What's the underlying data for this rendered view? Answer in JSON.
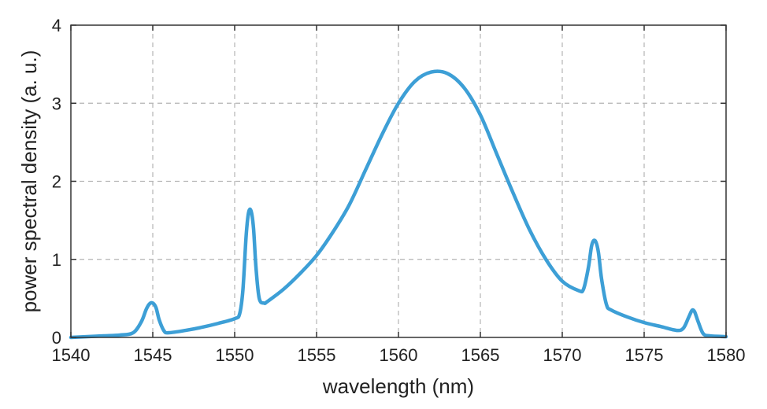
{
  "chart_data": {
    "type": "line",
    "xlabel": "wavelength (nm)",
    "ylabel": "power spectral density (a. u.)",
    "xlim": [
      1540,
      1580
    ],
    "ylim": [
      0,
      4
    ],
    "xticks": [
      1540,
      1545,
      1550,
      1555,
      1560,
      1565,
      1570,
      1575,
      1580
    ],
    "yticks": [
      0,
      1,
      2,
      3,
      4
    ],
    "grid": true,
    "line_color": "#3d9fd6",
    "series": [
      {
        "x": [
          1540,
          1541,
          1542,
          1543,
          1543.8,
          1544.3,
          1544.6,
          1544.8,
          1545,
          1545.2,
          1545.4,
          1545.7,
          1546,
          1547,
          1548,
          1549,
          1550,
          1550.3,
          1550.5,
          1550.7,
          1550.85,
          1551,
          1551.15,
          1551.3,
          1551.5,
          1551.8,
          1552,
          1553,
          1554,
          1555,
          1556,
          1557,
          1558,
          1559,
          1560,
          1561,
          1562,
          1563,
          1564,
          1565,
          1566,
          1567,
          1568,
          1569,
          1570,
          1571,
          1571.3,
          1571.6,
          1571.8,
          1572,
          1572.2,
          1572.4,
          1572.7,
          1573,
          1574,
          1575,
          1576,
          1577,
          1577.4,
          1577.7,
          1577.9,
          1578,
          1578.1,
          1578.3,
          1578.6,
          1579,
          1580
        ],
        "y": [
          0.0,
          0.01,
          0.02,
          0.03,
          0.06,
          0.2,
          0.36,
          0.43,
          0.44,
          0.38,
          0.22,
          0.08,
          0.06,
          0.09,
          0.13,
          0.18,
          0.24,
          0.3,
          0.6,
          1.3,
          1.6,
          1.62,
          1.4,
          0.9,
          0.5,
          0.44,
          0.46,
          0.62,
          0.82,
          1.05,
          1.35,
          1.7,
          2.15,
          2.6,
          3.0,
          3.28,
          3.4,
          3.38,
          3.2,
          2.85,
          2.35,
          1.85,
          1.38,
          1.0,
          0.72,
          0.6,
          0.62,
          0.9,
          1.18,
          1.24,
          1.1,
          0.75,
          0.42,
          0.35,
          0.26,
          0.19,
          0.14,
          0.09,
          0.12,
          0.25,
          0.34,
          0.35,
          0.32,
          0.2,
          0.05,
          0.02,
          0.01
        ]
      }
    ]
  }
}
